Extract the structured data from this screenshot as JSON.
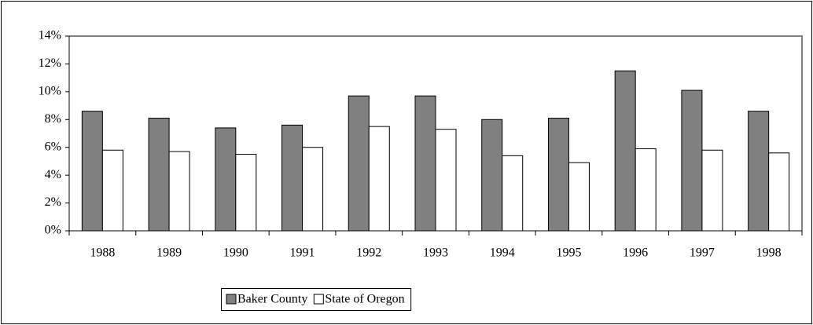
{
  "chart_data": {
    "type": "bar",
    "categories": [
      "1988",
      "1989",
      "1990",
      "1991",
      "1992",
      "1993",
      "1994",
      "1995",
      "1996",
      "1997",
      "1998"
    ],
    "series": [
      {
        "name": "Baker County",
        "color": "#808080",
        "values": [
          8.6,
          8.1,
          7.4,
          7.6,
          9.7,
          9.7,
          8.0,
          8.1,
          11.5,
          10.1,
          8.6
        ]
      },
      {
        "name": "State of Oregon",
        "color": "#ffffff",
        "values": [
          5.8,
          5.7,
          5.5,
          6.0,
          7.5,
          7.3,
          5.4,
          4.9,
          5.9,
          5.8,
          5.6
        ]
      }
    ],
    "ylim": [
      0,
      14
    ],
    "yticks": [
      {
        "value": 0,
        "label": "0%"
      },
      {
        "value": 2,
        "label": "2%"
      },
      {
        "value": 4,
        "label": "4%"
      },
      {
        "value": 6,
        "label": "6%"
      },
      {
        "value": 8,
        "label": "8%"
      },
      {
        "value": 10,
        "label": "10%"
      },
      {
        "value": 12,
        "label": "12%"
      },
      {
        "value": 14,
        "label": "14%"
      }
    ],
    "grid": false,
    "legend": "bottom"
  }
}
